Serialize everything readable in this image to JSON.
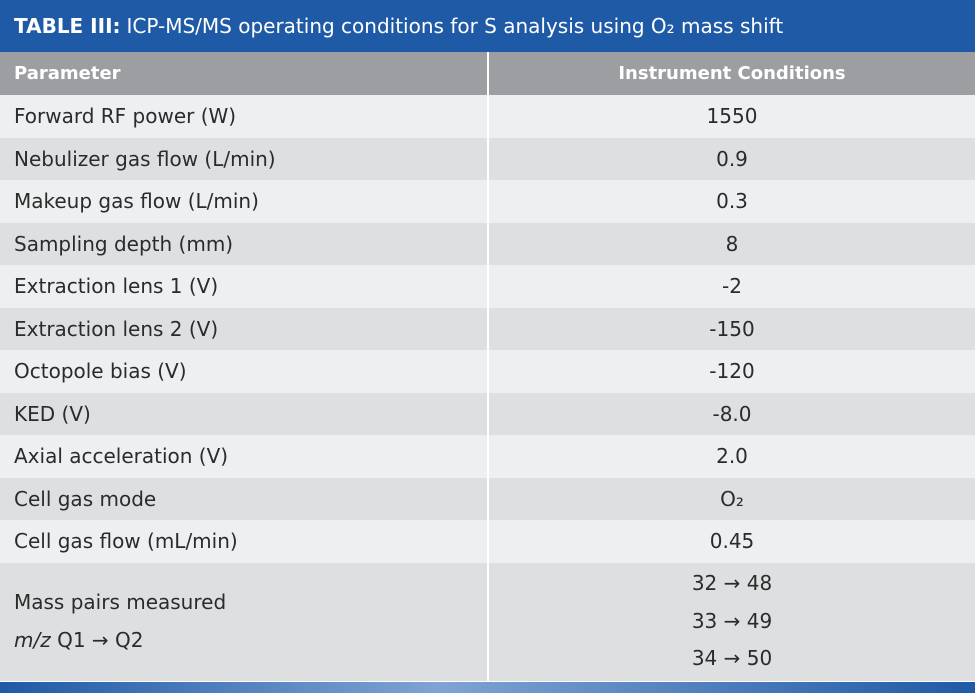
{
  "caption": {
    "label": "TABLE III:",
    "text": "ICP-MS/MS operating conditions for S analysis using O₂ mass shift"
  },
  "table": {
    "headers": [
      "Parameter",
      "Instrument Conditions"
    ],
    "rows": [
      {
        "parameter": "Forward RF power (W)",
        "value": "1550"
      },
      {
        "parameter": "Nebulizer gas flow (L/min)",
        "value": "0.9"
      },
      {
        "parameter": "Makeup gas flow (L/min)",
        "value": "0.3"
      },
      {
        "parameter": "Sampling depth (mm)",
        "value": "8"
      },
      {
        "parameter": "Extraction lens 1 (V)",
        "value": "-2"
      },
      {
        "parameter": "Extraction lens 2 (V)",
        "value": "-150"
      },
      {
        "parameter": "Octopole bias (V)",
        "value": "-120"
      },
      {
        "parameter": "KED (V)",
        "value": "-8.0"
      },
      {
        "parameter": "Axial acceleration (V)",
        "value": "2.0"
      },
      {
        "parameter": "Cell gas mode",
        "value": "O₂"
      },
      {
        "parameter": "Cell gas flow (mL/min)",
        "value": "0.45"
      }
    ],
    "last_row": {
      "parameter_line1": "Mass pairs measured",
      "parameter_line2_italic": "m/z",
      "parameter_line2_rest": " Q1 → Q2",
      "values": [
        "32 → 48",
        "33 → 49",
        "34 → 50"
      ]
    }
  },
  "colors": {
    "caption_bg": "#1f5aa6",
    "header_bg": "#9c9ea1",
    "row_light": "#eeeff0",
    "row_dark": "#dedfe1"
  }
}
